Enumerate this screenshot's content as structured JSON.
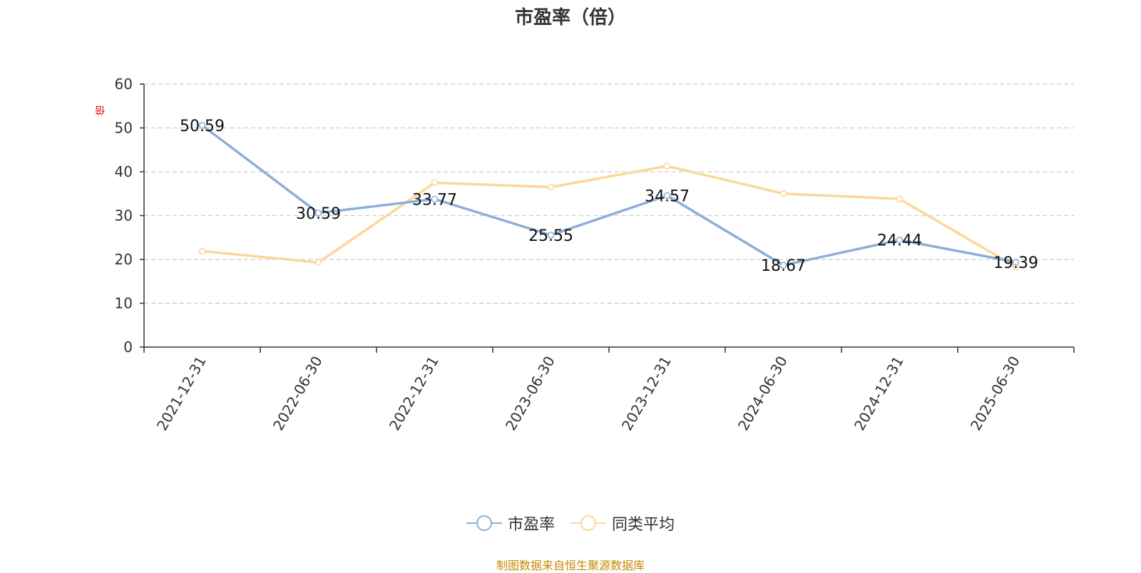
{
  "chart_data": {
    "type": "line",
    "title": "市盈率（倍）",
    "ylabel": "倍",
    "ylim": [
      0,
      60
    ],
    "yticks": [
      0,
      10,
      20,
      30,
      40,
      50,
      60
    ],
    "categories": [
      "2021-12-31",
      "2022-06-30",
      "2022-12-31",
      "2023-06-30",
      "2023-12-31",
      "2024-06-30",
      "2024-12-31",
      "2025-06-30"
    ],
    "grid": true,
    "legend_position": "bottom",
    "series": [
      {
        "name": "市盈率",
        "color": "#8eaed8",
        "values": [
          50.59,
          30.59,
          33.77,
          25.55,
          34.57,
          18.67,
          24.44,
          19.39
        ],
        "labels": [
          "50.59",
          "30.59",
          "33.77",
          "25.55",
          "34.57",
          "18.67",
          "24.44",
          "19.39"
        ]
      },
      {
        "name": "同类平均",
        "color": "#fcd898",
        "values": [
          21.9,
          19.3,
          37.5,
          36.5,
          41.3,
          35.0,
          33.8,
          18.3
        ]
      }
    ],
    "source_note": "制图数据来自恒生聚源数据库"
  }
}
